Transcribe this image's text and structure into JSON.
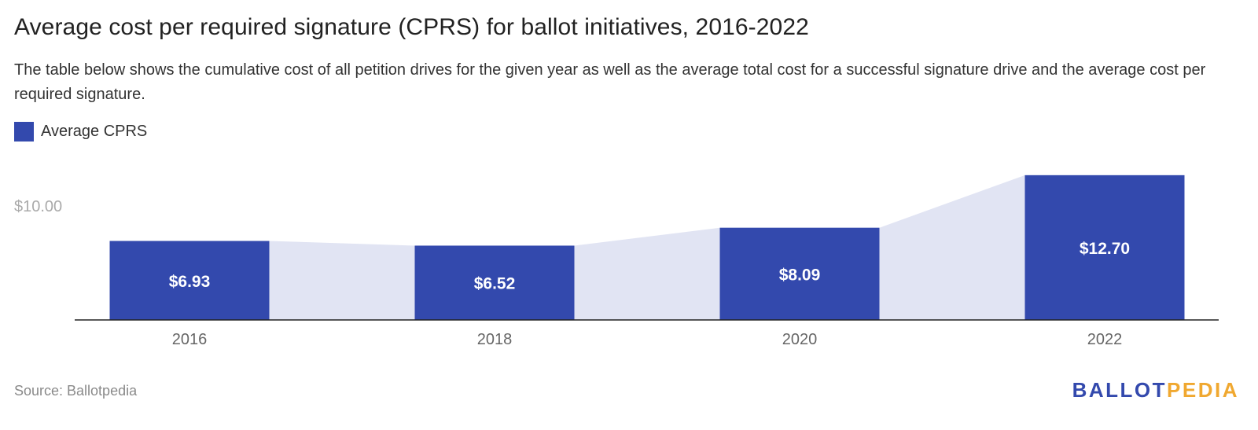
{
  "title": "Average cost per required signature (CPRS) for ballot initiatives, 2016-2022",
  "subtitle": "The table below shows the cumulative cost of all petition drives for the given year as well as the average total cost for a successful signature drive and the average cost per required signature.",
  "source": "Source: Ballotpedia",
  "logo": {
    "part1": "BALLOT",
    "part2": "PEDIA"
  },
  "colors": {
    "bar": "#3349ad",
    "area": "#e1e4f3",
    "axis": "#222222",
    "tick": "#666666",
    "gridlabel": "#aaaaaa"
  },
  "chart_data": {
    "type": "bar",
    "title": "Average cost per required signature (CPRS) for ballot initiatives, 2016-2022",
    "categories": [
      "2016",
      "2018",
      "2020",
      "2022"
    ],
    "series": [
      {
        "name": "Average CPRS",
        "values": [
          6.93,
          6.52,
          8.09,
          12.7
        ],
        "labels": [
          "$6.93",
          "$6.52",
          "$8.09",
          "$12.70"
        ]
      }
    ],
    "y_ticks": [
      {
        "value": 10,
        "label": "$10.00"
      }
    ],
    "ylim": [
      0,
      13
    ],
    "legend_position": "top-left",
    "xlabel": "",
    "ylabel": ""
  }
}
